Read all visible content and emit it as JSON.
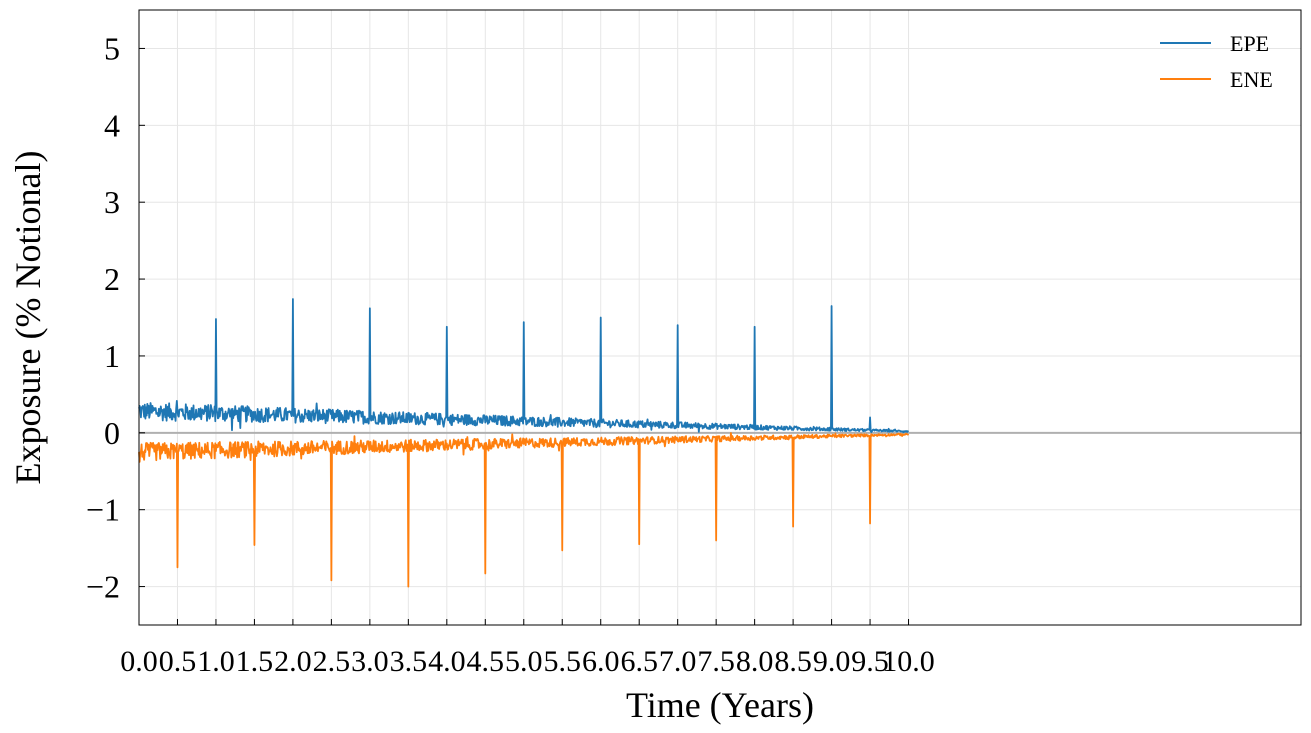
{
  "chart_data": {
    "type": "line",
    "xlabel": "Time (Years)",
    "ylabel": "Exposure (% Notional)",
    "xlim": [
      0,
      15.1
    ],
    "ylim": [
      -2.5,
      5.5
    ],
    "x_ticks": [
      "0.0",
      "0.5",
      "1.0",
      "1.5",
      "2.0",
      "2.5",
      "3.0",
      "3.5",
      "4.0",
      "4.5",
      "5.0",
      "5.5",
      "6.0",
      "6.5",
      "7.0",
      "7.5",
      "8.0",
      "8.5",
      "9.0",
      "9.5",
      "10.0"
    ],
    "y_ticks": [
      "−2",
      "−1",
      "0",
      "1",
      "2",
      "3",
      "4",
      "5"
    ],
    "grid": true,
    "legend": "top-right",
    "zero_line_color": "#b0b0b0",
    "series": [
      {
        "name": "EPE",
        "color": "#1f77b4",
        "base_start": 0.28,
        "base_end": 0.02,
        "noise_amplitude": 0.12,
        "spikes": [
          {
            "x": 1.0,
            "y": 1.48
          },
          {
            "x": 2.0,
            "y": 1.74
          },
          {
            "x": 3.0,
            "y": 1.62
          },
          {
            "x": 4.0,
            "y": 1.38
          },
          {
            "x": 5.0,
            "y": 1.44
          },
          {
            "x": 6.0,
            "y": 1.5
          },
          {
            "x": 7.0,
            "y": 1.4
          },
          {
            "x": 8.0,
            "y": 1.38
          },
          {
            "x": 9.0,
            "y": 1.65
          },
          {
            "x": 9.5,
            "y": 0.2
          }
        ]
      },
      {
        "name": "ENE",
        "color": "#ff7f0e",
        "base_start": -0.25,
        "base_end": -0.02,
        "noise_amplitude": 0.12,
        "spikes": [
          {
            "x": 0.5,
            "y": -1.75
          },
          {
            "x": 1.5,
            "y": -1.46
          },
          {
            "x": 2.5,
            "y": -1.92
          },
          {
            "x": 3.5,
            "y": -2.0
          },
          {
            "x": 4.5,
            "y": -1.83
          },
          {
            "x": 5.5,
            "y": -1.53
          },
          {
            "x": 6.5,
            "y": -1.45
          },
          {
            "x": 7.5,
            "y": -1.4
          },
          {
            "x": 8.5,
            "y": -1.22
          },
          {
            "x": 9.5,
            "y": -1.18
          }
        ]
      }
    ]
  }
}
